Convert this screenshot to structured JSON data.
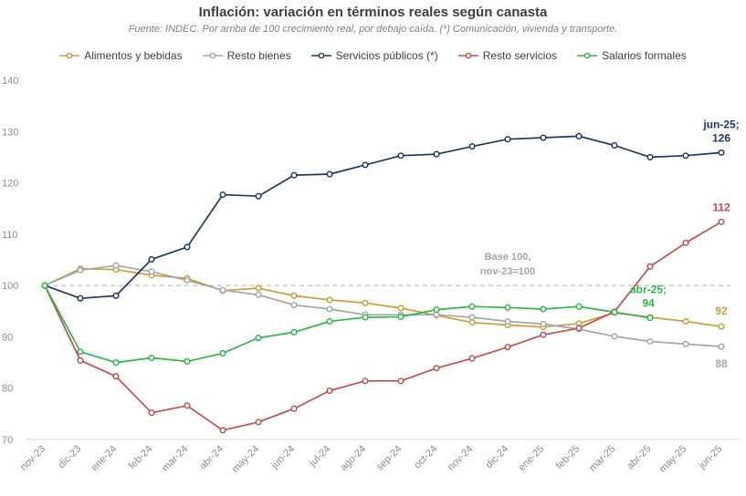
{
  "chart_data": {
    "type": "line",
    "title": "Inflación: variación  en términos reales según canasta",
    "subtitle": "Fuente: INDEC. Por arriba de 100 crecimiento real, por debajo caída. (*) Comunicación, vivienda y transporte.",
    "ylim": [
      70,
      140
    ],
    "yticks": [
      70,
      80,
      90,
      100,
      110,
      120,
      130,
      140
    ],
    "grid": false,
    "legend_position": "top",
    "categories": [
      "nov-23",
      "dic-23",
      "ene-24",
      "feb-24",
      "mar-24",
      "abr-24",
      "may-24",
      "jun-24",
      "jul-24",
      "ago-24",
      "sep-24",
      "oct-24",
      "nov-24",
      "dic-24",
      "ene-25",
      "feb-25",
      "mar-25",
      "abr-25",
      "may-25",
      "jun-25"
    ],
    "series": [
      {
        "name": "Alimentos y bebidas",
        "color": "#c9a037",
        "values": [
          100,
          103.3,
          103.1,
          102.0,
          101.4,
          99.0,
          99.5,
          98.0,
          97.2,
          96.6,
          95.6,
          94.2,
          92.8,
          92.3,
          91.9,
          92.6,
          94.7,
          93.8,
          93.0,
          92.0
        ]
      },
      {
        "name": "Resto bienes",
        "color": "#a6a6a6",
        "values": [
          100,
          103.0,
          103.9,
          102.7,
          101.0,
          99.1,
          98.2,
          96.2,
          95.4,
          94.3,
          94.3,
          94.3,
          93.8,
          93.0,
          92.5,
          91.5,
          90.1,
          89.1,
          88.6,
          88.1
        ]
      },
      {
        "name": "Servicios públicos (*)",
        "color": "#203864",
        "values": [
          100,
          97.5,
          98.0,
          105.1,
          107.5,
          117.7,
          117.4,
          121.5,
          121.7,
          123.5,
          125.3,
          125.6,
          127.1,
          128.5,
          128.8,
          129.1,
          127.3,
          125.0,
          125.3,
          125.9
        ]
      },
      {
        "name": "Resto servicios",
        "color": "#c0504d",
        "values": [
          100,
          85.4,
          82.3,
          75.2,
          76.6,
          71.8,
          73.4,
          76.0,
          79.5,
          81.4,
          81.4,
          83.9,
          85.8,
          88.0,
          90.4,
          91.7,
          94.9,
          103.7,
          108.3,
          112.4
        ]
      },
      {
        "name": "Salarios formales",
        "color": "#2eb84a",
        "values": [
          100,
          87.1,
          85.0,
          85.9,
          85.2,
          86.8,
          89.8,
          90.9,
          93.0,
          93.8,
          93.9,
          95.3,
          95.9,
          95.7,
          95.4,
          95.9,
          94.8,
          93.7,
          null,
          null
        ]
      }
    ],
    "baseline": {
      "value": 100,
      "label_lines": [
        "Base 100,",
        "nov-23=100"
      ]
    },
    "annotations": [
      {
        "series": 2,
        "index": 19,
        "lines": [
          "jun-25;",
          "126"
        ]
      },
      {
        "series": 3,
        "index": 19,
        "lines": [
          "112"
        ]
      },
      {
        "series": 0,
        "index": 19,
        "lines": [
          "92"
        ]
      },
      {
        "series": 1,
        "index": 19,
        "lines": [
          "88"
        ]
      },
      {
        "series": 4,
        "index": 17,
        "lines": [
          "abr-25;",
          "94"
        ]
      }
    ]
  }
}
